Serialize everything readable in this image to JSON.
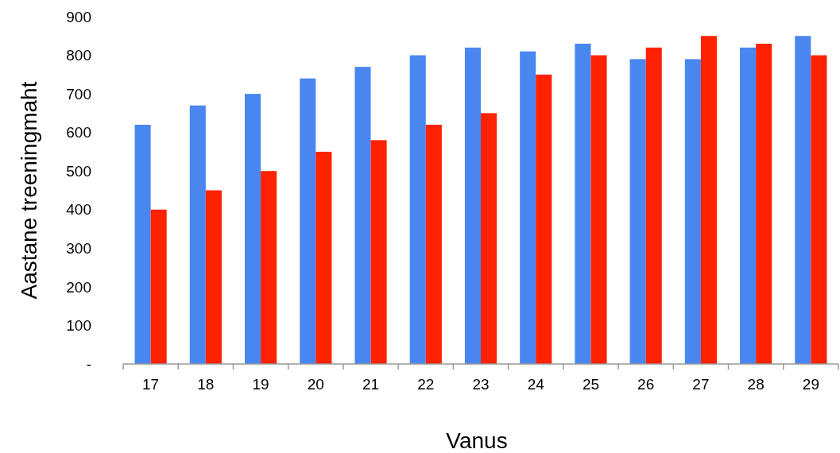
{
  "chart_data": {
    "type": "bar",
    "xlabel": "Vanus",
    "ylabel": "Aastane treeningmaht",
    "categories": [
      "17",
      "18",
      "19",
      "20",
      "21",
      "22",
      "23",
      "24",
      "25",
      "26",
      "27",
      "28",
      "29"
    ],
    "series": [
      {
        "color": "#4a86f0",
        "values": [
          620,
          670,
          700,
          740,
          770,
          800,
          820,
          810,
          830,
          790,
          790,
          820,
          850
        ]
      },
      {
        "color": "#ff2200",
        "values": [
          400,
          450,
          500,
          550,
          580,
          620,
          650,
          750,
          800,
          820,
          850,
          830,
          800
        ]
      }
    ],
    "ylim": [
      0,
      900
    ],
    "yticks": [
      {
        "value": 0,
        "label": "-"
      },
      100,
      200,
      300,
      400,
      500,
      600,
      700,
      800,
      900
    ],
    "grid": false
  }
}
